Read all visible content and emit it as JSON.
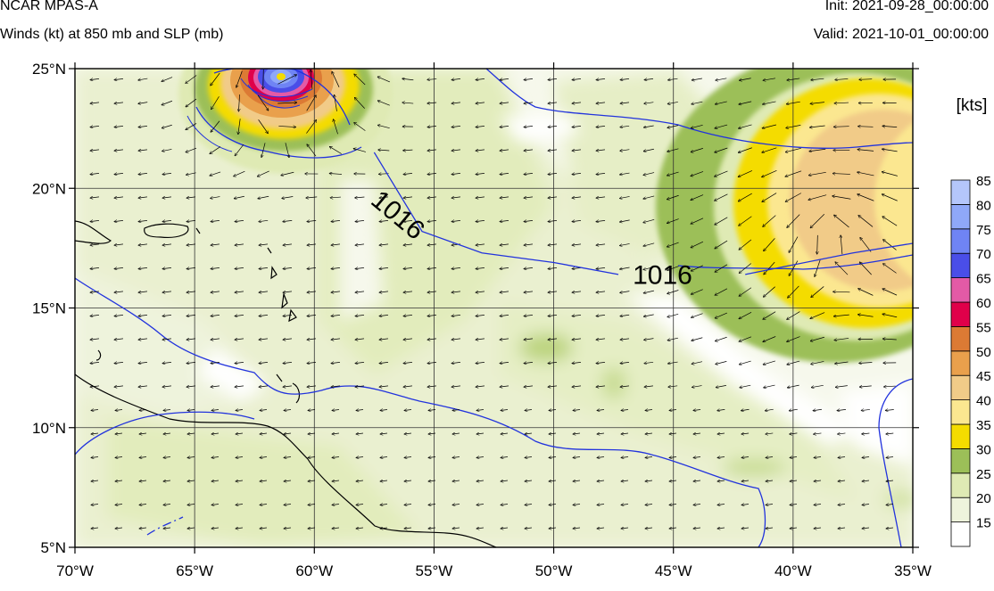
{
  "header": {
    "model": "NCAR MPAS-A",
    "subtitle": "Winds (kt) at 850 mb and SLP (mb)",
    "init": "Init: 2021-09-28_00:00:00",
    "valid": "Valid: 2021-10-01_00:00:00"
  },
  "chart_data": {
    "type": "heatmap",
    "title": "Winds (kt) at 850 mb and SLP (mb)",
    "xlabel": "",
    "ylabel": "",
    "xlim": [
      -70,
      -35
    ],
    "ylim": [
      5,
      25
    ],
    "x_ticks": [
      -70,
      -65,
      -60,
      -55,
      -50,
      -45,
      -40,
      -35
    ],
    "x_tick_labels": [
      "70°W",
      "65°W",
      "60°W",
      "55°W",
      "50°W",
      "45°W",
      "40°W",
      "35°W"
    ],
    "y_ticks": [
      5,
      10,
      15,
      20,
      25
    ],
    "y_tick_labels": [
      "5°N",
      "10°N",
      "15°N",
      "20°N",
      "25°N"
    ],
    "grid": true,
    "colorbar": {
      "title": "[kts]",
      "levels": [
        15,
        20,
        25,
        30,
        35,
        40,
        45,
        50,
        55,
        60,
        65,
        70,
        75,
        80,
        85
      ],
      "colors": [
        "#ffffff",
        "#eef3dc",
        "#dfeab4",
        "#9cbf58",
        "#f4dc00",
        "#fbe790",
        "#f1cb88",
        "#e9a04c",
        "#dc7a34",
        "#e0004a",
        "#e35aa6",
        "#4a4ee8",
        "#6f84f4",
        "#8fa8f8",
        "#b4c6fb"
      ]
    },
    "wind_field_pattern": "easterly trade winds, flow arrows over the domain",
    "slp_contours": [
      {
        "value": 1016,
        "label": "1016",
        "points": [
          [
            -57.5,
            21.5
          ],
          [
            -55.5,
            18.2
          ],
          [
            -53,
            17.3
          ],
          [
            -50,
            16.9
          ],
          [
            -47.3,
            16.4
          ]
        ]
      },
      {
        "value": 1016,
        "label": "1016",
        "points": [
          [
            -42,
            16.4
          ],
          [
            -40,
            16.8
          ],
          [
            -37.5,
            17.3
          ],
          [
            -35,
            17.7
          ]
        ]
      }
    ],
    "annotations": [
      "1016",
      "1016"
    ],
    "features": [
      {
        "name": "hurricane",
        "lon": -61.2,
        "lat": 24.7,
        "max_wind_kts": 90
      },
      {
        "name": "wind-maximum-region",
        "lon": -38.5,
        "lat": 18.5,
        "max_wind_kts": 45
      }
    ]
  }
}
